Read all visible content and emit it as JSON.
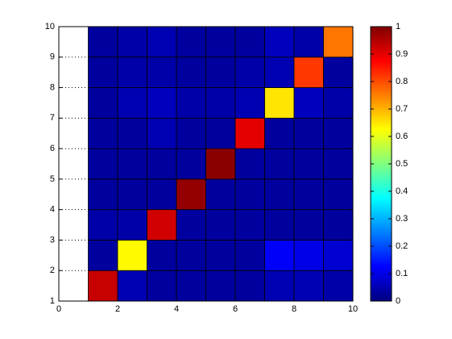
{
  "chart_data": {
    "type": "heatmap",
    "x": [
      1,
      2,
      3,
      4,
      5,
      6,
      7,
      8,
      9,
      10
    ],
    "y": [
      1,
      2,
      3,
      4,
      5,
      6,
      7,
      8,
      9,
      10
    ],
    "z": [
      [
        0.93,
        0.05,
        0.03,
        0.03,
        0.03,
        0.03,
        0.05,
        0.05,
        0.04
      ],
      [
        0.03,
        0.63,
        0.03,
        0.03,
        0.03,
        0.03,
        0.12,
        0.1,
        0.08
      ],
      [
        0.04,
        0.04,
        0.92,
        0.03,
        0.03,
        0.03,
        0.03,
        0.03,
        0.03
      ],
      [
        0.03,
        0.03,
        0.03,
        0.98,
        0.03,
        0.03,
        0.03,
        0.03,
        0.03
      ],
      [
        0.03,
        0.03,
        0.03,
        0.03,
        0.99,
        0.03,
        0.03,
        0.03,
        0.03
      ],
      [
        0.03,
        0.03,
        0.05,
        0.03,
        0.03,
        0.9,
        0.03,
        0.03,
        0.03
      ],
      [
        0.03,
        0.05,
        0.06,
        0.04,
        0.04,
        0.05,
        0.65,
        0.06,
        0.04
      ],
      [
        0.03,
        0.04,
        0.04,
        0.03,
        0.03,
        0.04,
        0.05,
        0.82,
        0.03
      ],
      [
        0.03,
        0.04,
        0.05,
        0.03,
        0.03,
        0.03,
        0.06,
        0.04,
        0.76
      ]
    ],
    "colormap": "jet",
    "xlim": [
      0,
      10
    ],
    "xticks": [
      0,
      2,
      4,
      6,
      8,
      10
    ],
    "ylim": [
      1,
      10
    ],
    "yticks": [
      1,
      2,
      3,
      4,
      5,
      6,
      7,
      8,
      9,
      10
    ],
    "grid": true,
    "colorbar": {
      "clim": [
        0,
        1
      ],
      "ticks": [
        0,
        0.1,
        0.2,
        0.3,
        0.4,
        0.5,
        0.6,
        0.7,
        0.8,
        0.9,
        1
      ]
    }
  }
}
